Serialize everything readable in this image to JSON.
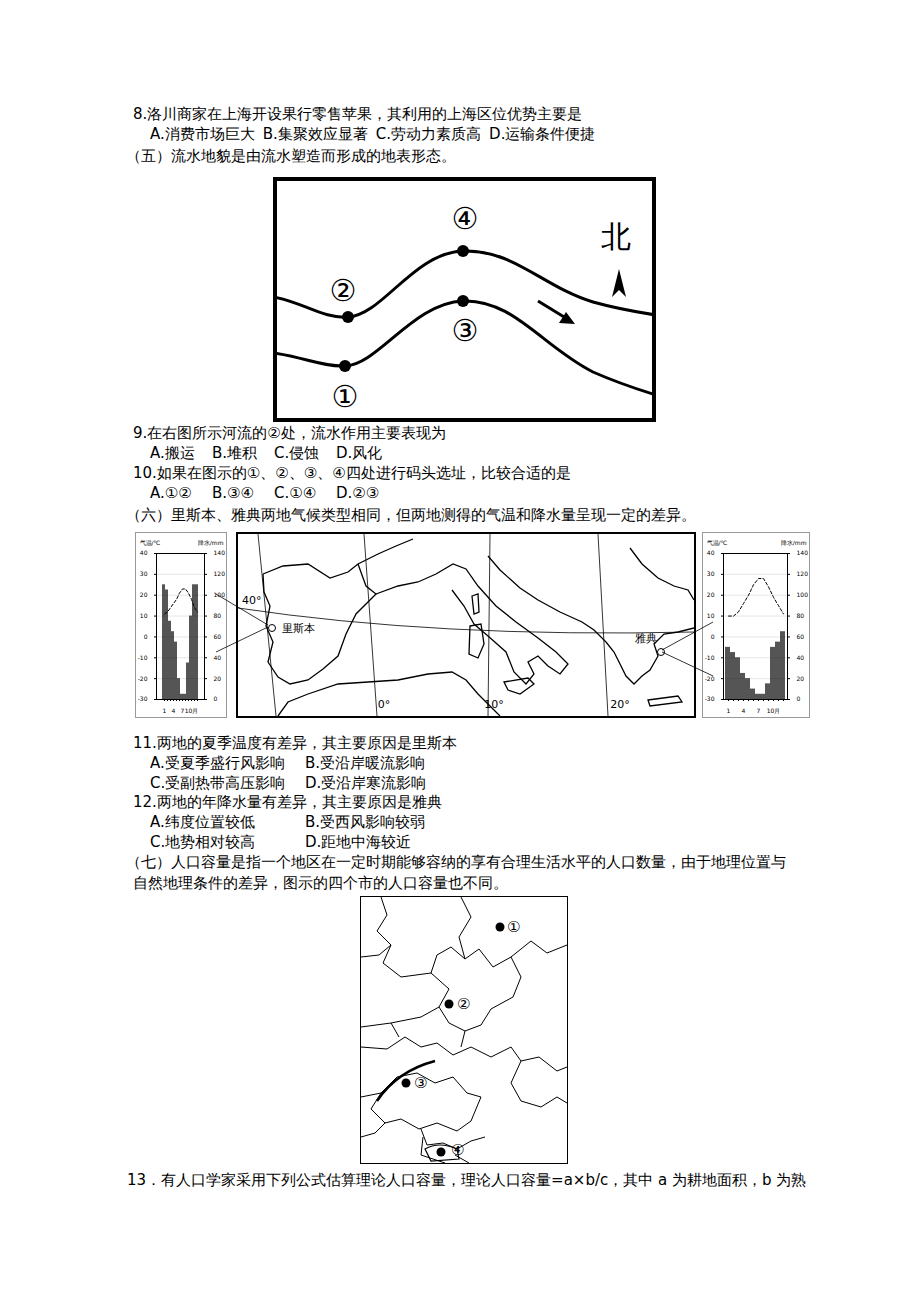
{
  "q8": {
    "stem": "8.洛川商家在上海开设果行零售苹果，其利用的上海区位优势主要是",
    "options": [
      "A.消费市场巨大",
      "B.集聚效应显著",
      "C.劳动力素质高",
      "D.运输条件便捷"
    ]
  },
  "sec5": "（五）流水地貌是由流水塑造而形成的地表形态。",
  "river_diagram": {
    "points": [
      "①",
      "②",
      "③",
      "④"
    ],
    "north": "北"
  },
  "q9": {
    "stem": "9.在右图所示河流的②处，流水作用主要表现为",
    "options": [
      "A.搬运",
      "B.堆积",
      "C.侵蚀",
      "D.风化"
    ]
  },
  "q10": {
    "stem": "10.如果在图示的①、②、③、④四处进行码头选址，比较合适的是",
    "options": [
      "A.①②",
      "B.③④",
      "C.①④",
      "D.②③"
    ]
  },
  "sec6": "（六）里斯本、雅典两地气候类型相同，但两地测得的气温和降水量呈现一定的差异。",
  "climate_map": {
    "lat_label": "40°",
    "meridians": [
      "0°",
      "10°",
      "20°"
    ],
    "cities": [
      "里斯本",
      "雅典"
    ]
  },
  "chart_data": [
    {
      "type": "combo",
      "ylabel": "气温/℃",
      "y2label": "降水/mm",
      "categories": [
        "1",
        null,
        null,
        "4",
        null,
        null,
        "7",
        null,
        null,
        "10月",
        null,
        null
      ],
      "ylim": [
        -30,
        40
      ],
      "yticks": [
        -30,
        -20,
        -10,
        0,
        10,
        20,
        30,
        40
      ],
      "y2lim": [
        0,
        140
      ],
      "y2ticks": [
        0,
        20,
        40,
        60,
        80,
        100,
        120,
        140
      ],
      "grid": true,
      "series": [
        {
          "type": "bar",
          "axis": "y2",
          "color": "#555555",
          "values": [
            110,
            105,
            75,
            65,
            55,
            20,
            5,
            5,
            35,
            80,
            110,
            110
          ]
        },
        {
          "type": "line",
          "color": "#000000",
          "line_style": "dashed",
          "values": [
            11,
            12,
            14,
            16,
            18,
            21,
            23,
            23,
            21,
            18,
            14,
            12
          ]
        }
      ]
    },
    {
      "type": "combo",
      "ylabel": "气温/℃",
      "y2label": "降水/mm",
      "categories": [
        "1",
        null,
        null,
        "4",
        null,
        null,
        "7",
        null,
        null,
        "10月",
        null,
        null
      ],
      "ylim": [
        -30,
        40
      ],
      "yticks": [
        -30,
        -20,
        -10,
        0,
        10,
        20,
        30,
        40
      ],
      "y2lim": [
        0,
        140
      ],
      "y2ticks": [
        0,
        20,
        40,
        60,
        80,
        100,
        120,
        140
      ],
      "grid": true,
      "series": [
        {
          "type": "bar",
          "axis": "y2",
          "color": "#555555",
          "values": [
            50,
            45,
            40,
            25,
            20,
            10,
            5,
            5,
            15,
            50,
            55,
            65
          ]
        },
        {
          "type": "line",
          "color": "#000000",
          "line_style": "dashed",
          "values": [
            10,
            10,
            12,
            16,
            20,
            25,
            28,
            28,
            24,
            19,
            15,
            11
          ]
        }
      ]
    }
  ],
  "q11": {
    "stem": "11.两地的夏季温度有差异，其主要原因是里斯本",
    "options": [
      "A.受夏季盛行风影响",
      "B.受沿岸暖流影响",
      "C.受副热带高压影响",
      "D.受沿岸寒流影响"
    ]
  },
  "q12": {
    "stem": "12.两地的年降水量有差异，其主要原因是雅典",
    "options": [
      "A.纬度位置较低",
      "B.受西风影响较弱",
      "C.地势相对较高",
      "D.距地中海较近"
    ]
  },
  "sec7": [
    "（七）人口容量是指一个地区在一定时期能够容纳的享有合理生活水平的人口数量，由于地理位置与",
    "自然地理条件的差异，图示的四个市的人口容量也不同。"
  ],
  "population_map": {
    "points": [
      "①",
      "②",
      "③",
      "④"
    ]
  },
  "q13": "13．有人口学家采用下列公式估算理论人口容量，理论人口容量=a×b/c，其中 a 为耕地面积，b 为熟"
}
